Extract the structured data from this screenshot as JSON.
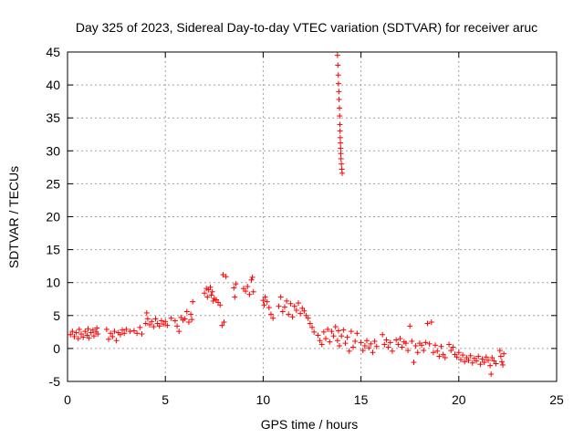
{
  "chart_data": {
    "type": "scatter",
    "title": "Day 325 of 2023, Sidereal Day-to-day VTEC variation (SDTVAR) for receiver aruc",
    "xlabel": "GPS time / hours",
    "ylabel": "SDTVAR / TECUs",
    "xlim": [
      0,
      25
    ],
    "ylim": [
      -5,
      45
    ],
    "xticks": [
      "0",
      "5",
      "10",
      "15",
      "20",
      "25"
    ],
    "yticks": [
      "-5",
      "0",
      "5",
      "10",
      "15",
      "20",
      "25",
      "30",
      "35",
      "40",
      "45"
    ],
    "grid": true,
    "marker": "+",
    "color": "#ff0000",
    "series": [
      {
        "name": "SDTVAR",
        "points": [
          [
            0.15,
            2.1
          ],
          [
            0.25,
            2.6
          ],
          [
            0.35,
            1.8
          ],
          [
            0.45,
            2.4
          ],
          [
            0.55,
            1.5
          ],
          [
            0.6,
            2.9
          ],
          [
            0.7,
            2.2
          ],
          [
            0.8,
            1.7
          ],
          [
            0.9,
            2.6
          ],
          [
            1.0,
            2.0
          ],
          [
            1.05,
            3.0
          ],
          [
            1.1,
            1.6
          ],
          [
            1.2,
            2.4
          ],
          [
            1.3,
            2.8
          ],
          [
            1.35,
            1.9
          ],
          [
            1.45,
            2.5
          ],
          [
            1.5,
            3.1
          ],
          [
            1.55,
            2.2
          ],
          [
            2.0,
            2.9
          ],
          [
            2.1,
            1.4
          ],
          [
            2.2,
            2.3
          ],
          [
            2.3,
            1.8
          ],
          [
            2.4,
            2.6
          ],
          [
            2.5,
            1.2
          ],
          [
            2.6,
            2.4
          ],
          [
            2.7,
            2.1
          ],
          [
            2.8,
            2.8
          ],
          [
            2.9,
            2.3
          ],
          [
            3.0,
            2.9
          ],
          [
            3.2,
            2.6
          ],
          [
            3.4,
            2.7
          ],
          [
            3.55,
            2.3
          ],
          [
            3.7,
            3.2
          ],
          [
            3.8,
            2.2
          ],
          [
            4.0,
            3.8
          ],
          [
            4.05,
            5.4
          ],
          [
            4.1,
            4.5
          ],
          [
            4.2,
            3.6
          ],
          [
            4.3,
            4.1
          ],
          [
            4.4,
            3.3
          ],
          [
            4.5,
            4.5
          ],
          [
            4.6,
            3.8
          ],
          [
            4.7,
            3.4
          ],
          [
            4.8,
            4.2
          ],
          [
            4.9,
            3.7
          ],
          [
            5.0,
            4.1
          ],
          [
            5.1,
            3.5
          ],
          [
            5.3,
            4.6
          ],
          [
            5.5,
            4.2
          ],
          [
            5.6,
            3.4
          ],
          [
            5.7,
            2.6
          ],
          [
            5.8,
            4.7
          ],
          [
            5.9,
            4.3
          ],
          [
            6.0,
            4.5
          ],
          [
            6.1,
            5.6
          ],
          [
            6.2,
            4.0
          ],
          [
            6.3,
            5.2
          ],
          [
            6.35,
            4.4
          ],
          [
            6.4,
            7.1
          ],
          [
            7.0,
            8.4
          ],
          [
            7.1,
            9.1
          ],
          [
            7.15,
            7.8
          ],
          [
            7.2,
            8.9
          ],
          [
            7.3,
            9.3
          ],
          [
            7.35,
            8.1
          ],
          [
            7.4,
            8.6
          ],
          [
            7.45,
            7.2
          ],
          [
            7.5,
            7.6
          ],
          [
            7.6,
            7.4
          ],
          [
            7.7,
            7.0
          ],
          [
            7.8,
            6.6
          ],
          [
            7.9,
            3.5
          ],
          [
            7.95,
            11.2
          ],
          [
            8.0,
            4.0
          ],
          [
            8.1,
            10.9
          ],
          [
            8.5,
            9.2
          ],
          [
            8.55,
            7.8
          ],
          [
            8.6,
            9.8
          ],
          [
            9.0,
            9.1
          ],
          [
            9.1,
            8.7
          ],
          [
            9.2,
            9.4
          ],
          [
            9.3,
            8.2
          ],
          [
            9.4,
            10.4
          ],
          [
            9.45,
            10.8
          ],
          [
            9.5,
            8.6
          ],
          [
            10.0,
            7.3
          ],
          [
            10.05,
            6.6
          ],
          [
            10.1,
            7.8
          ],
          [
            10.2,
            7.1
          ],
          [
            10.3,
            6.2
          ],
          [
            10.4,
            5.2
          ],
          [
            10.5,
            4.6
          ],
          [
            10.8,
            6.4
          ],
          [
            10.9,
            7.8
          ],
          [
            11.0,
            5.6
          ],
          [
            11.1,
            6.3
          ],
          [
            11.2,
            7.2
          ],
          [
            11.3,
            5.2
          ],
          [
            11.4,
            6.8
          ],
          [
            11.5,
            4.8
          ],
          [
            11.6,
            6.4
          ],
          [
            11.7,
            5.8
          ],
          [
            11.8,
            6.9
          ],
          [
            11.9,
            5.3
          ],
          [
            12.0,
            6.1
          ],
          [
            12.1,
            5.7
          ],
          [
            12.2,
            5.0
          ],
          [
            12.3,
            4.6
          ],
          [
            12.4,
            3.8
          ],
          [
            12.5,
            3.2
          ],
          [
            12.6,
            2.5
          ],
          [
            12.8,
            2.0
          ],
          [
            12.9,
            1.2
          ],
          [
            13.0,
            0.6
          ],
          [
            13.1,
            2.5
          ],
          [
            13.2,
            1.5
          ],
          [
            13.3,
            2.9
          ],
          [
            13.4,
            1.0
          ],
          [
            13.5,
            2.6
          ],
          [
            13.6,
            1.9
          ],
          [
            13.7,
            3.3
          ],
          [
            13.8,
            1.2
          ],
          [
            13.85,
            2.7
          ],
          [
            13.9,
            0.4
          ],
          [
            14.0,
            1.9
          ],
          [
            14.1,
            2.8
          ],
          [
            14.2,
            0.8
          ],
          [
            14.3,
            1.7
          ],
          [
            14.4,
            -0.4
          ],
          [
            14.5,
            2.6
          ],
          [
            14.6,
            0.2
          ],
          [
            14.7,
            1.1
          ],
          [
            14.8,
            2.3
          ],
          [
            13.8,
            44.5
          ],
          [
            13.82,
            43.0
          ],
          [
            13.84,
            41.5
          ],
          [
            13.85,
            40.2
          ],
          [
            13.87,
            39.0
          ],
          [
            13.88,
            37.8
          ],
          [
            13.9,
            36.5
          ],
          [
            13.91,
            35.3
          ],
          [
            13.92,
            34.0
          ],
          [
            13.93,
            33.0
          ],
          [
            13.94,
            32.0
          ],
          [
            13.95,
            31.2
          ],
          [
            13.96,
            30.4
          ],
          [
            13.97,
            29.6
          ],
          [
            13.98,
            28.8
          ],
          [
            14.0,
            28.0
          ],
          [
            14.02,
            27.2
          ],
          [
            14.04,
            26.6
          ],
          [
            15.0,
            0.9
          ],
          [
            15.1,
            -0.3
          ],
          [
            15.2,
            0.4
          ],
          [
            15.3,
            1.2
          ],
          [
            15.4,
            0.1
          ],
          [
            15.5,
            0.7
          ],
          [
            15.6,
            -0.6
          ],
          [
            15.7,
            1.1
          ],
          [
            15.8,
            0.3
          ],
          [
            16.1,
            2.1
          ],
          [
            16.2,
            0.6
          ],
          [
            16.3,
            1.3
          ],
          [
            16.4,
            0.2
          ],
          [
            16.5,
            0.9
          ],
          [
            16.6,
            -0.4
          ],
          [
            16.8,
            1.3
          ],
          [
            16.9,
            0.6
          ],
          [
            17.0,
            1.5
          ],
          [
            17.1,
            0.2
          ],
          [
            17.2,
            1.0
          ],
          [
            17.3,
            0.8
          ],
          [
            17.4,
            -0.3
          ],
          [
            17.5,
            3.4
          ],
          [
            17.6,
            1.1
          ],
          [
            17.7,
            -2.1
          ],
          [
            17.8,
            0.4
          ],
          [
            17.9,
            -0.6
          ],
          [
            18.0,
            0.8
          ],
          [
            18.1,
            0.5
          ],
          [
            18.2,
            -0.3
          ],
          [
            18.3,
            0.9
          ],
          [
            18.4,
            3.8
          ],
          [
            18.5,
            0.7
          ],
          [
            18.6,
            4.0
          ],
          [
            18.7,
            -0.6
          ],
          [
            18.8,
            0.5
          ],
          [
            18.9,
            -0.4
          ],
          [
            19.0,
            -1.2
          ],
          [
            19.1,
            0.3
          ],
          [
            19.2,
            -0.9
          ],
          [
            19.3,
            -1.4
          ],
          [
            19.5,
            0.6
          ],
          [
            19.6,
            -0.3
          ],
          [
            19.7,
            0.2
          ],
          [
            19.8,
            -0.9
          ],
          [
            19.9,
            -1.3
          ],
          [
            20.0,
            -0.6
          ],
          [
            20.1,
            -1.7
          ],
          [
            20.2,
            -1.0
          ],
          [
            20.3,
            -2.0
          ],
          [
            20.4,
            -1.4
          ],
          [
            20.5,
            -1.8
          ],
          [
            20.6,
            -1.1
          ],
          [
            20.7,
            -2.2
          ],
          [
            20.8,
            -1.5
          ],
          [
            20.9,
            -1.9
          ],
          [
            21.0,
            -1.2
          ],
          [
            21.1,
            -2.4
          ],
          [
            21.2,
            -1.6
          ],
          [
            21.3,
            -2.1
          ],
          [
            21.4,
            -1.3
          ],
          [
            21.5,
            -1.8
          ],
          [
            21.6,
            -2.6
          ],
          [
            21.65,
            -3.9
          ],
          [
            21.7,
            -1.4
          ],
          [
            21.8,
            -1.9
          ],
          [
            21.9,
            -2.3
          ],
          [
            22.1,
            -0.3
          ],
          [
            22.15,
            -1.2
          ],
          [
            22.2,
            -2.0
          ],
          [
            22.25,
            -2.5
          ],
          [
            22.3,
            -0.8
          ]
        ]
      }
    ]
  }
}
